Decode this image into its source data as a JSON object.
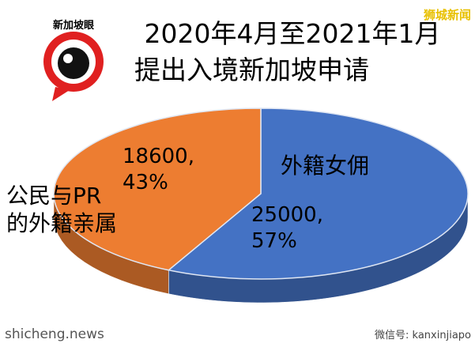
{
  "chart_data": {
    "type": "pie3d",
    "title": [
      "2020年4月至2021年1月",
      "提出入境新加坡申请"
    ],
    "categories": [
      "外籍女佣",
      "公民与PR\n的外籍亲属"
    ],
    "values": [
      25000,
      18600
    ],
    "value_labels": [
      "25000,\n57%",
      "18600,\n43%"
    ],
    "colors": [
      "#4472c4",
      "#ed7d31"
    ]
  },
  "watermarks": {
    "logo": "新加坡眼",
    "top_right": "狮城新闻",
    "bottom_left": "shicheng.news",
    "bottom_right": "微信号: kanxinjiapo"
  }
}
